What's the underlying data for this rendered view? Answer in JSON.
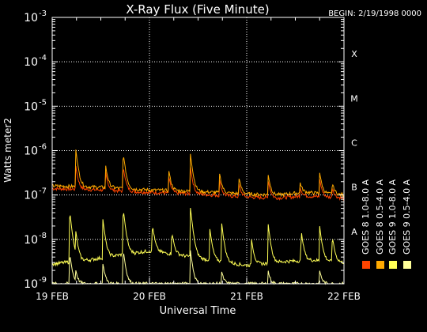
{
  "chart_data": {
    "type": "line",
    "title": "X-Ray Flux (Five Minute)",
    "begin": "BEGIN: 2/19/1998 0000",
    "ylabel": "Watts meter2",
    "xlabel": "Universal Time",
    "x_ticks": [
      "19 FEB",
      "20 FEB",
      "21 FEB",
      "22 FEB"
    ],
    "x_range_days": [
      0,
      3
    ],
    "y_log": true,
    "y_ticks": [
      {
        "base": "10",
        "exp": "-3",
        "value": 0.001
      },
      {
        "base": "10",
        "exp": "-4",
        "value": 0.0001
      },
      {
        "base": "10",
        "exp": "-5",
        "value": 1e-05
      },
      {
        "base": "10",
        "exp": "-6",
        "value": 1e-06
      },
      {
        "base": "10",
        "exp": "-7",
        "value": 1e-07
      },
      {
        "base": "10",
        "exp": "-8",
        "value": 1e-08
      },
      {
        "base": "10",
        "exp": "-9",
        "value": 1e-09
      }
    ],
    "ylim": [
      1e-09,
      0.001
    ],
    "flare_classes": [
      {
        "label": "X",
        "value": 0.0001
      },
      {
        "label": "M",
        "value": 1e-05
      },
      {
        "label": "C",
        "value": 1e-06
      },
      {
        "label": "B",
        "value": 1e-07
      },
      {
        "label": "A",
        "value": 1e-08
      }
    ],
    "grid": true,
    "legend": [
      {
        "label": "GOES 8 1.0-8.0 A",
        "color": "#ff4400"
      },
      {
        "label": "GOES 8 0.5-4.0 A",
        "color": "#ffaa00"
      },
      {
        "label": "GOES 9 1.0-8.0 A",
        "color": "#ffff55"
      },
      {
        "label": "GOES 9 0.5-4.0 A",
        "color": "#ffff99"
      }
    ],
    "series": [
      {
        "name": "GOES 8 1.0-8.0 A",
        "color": "#ff4400",
        "base": [
          [
            0,
            1.4e-07
          ],
          [
            0.5,
            1.3e-07
          ],
          [
            1.0,
            1.15e-07
          ],
          [
            1.5,
            1.05e-07
          ],
          [
            2.0,
            9e-08
          ],
          [
            2.3,
            8.5e-08
          ],
          [
            2.6,
            9.5e-08
          ],
          [
            3.0,
            8.5e-08
          ]
        ],
        "peaks": [
          [
            0.24,
            5e-07
          ],
          [
            0.55,
            3.2e-07
          ],
          [
            0.73,
            4.5e-07
          ],
          [
            1.2,
            2.5e-07
          ],
          [
            1.42,
            4.5e-07
          ],
          [
            1.72,
            2.2e-07
          ],
          [
            1.92,
            1.8e-07
          ],
          [
            2.22,
            2.2e-07
          ],
          [
            2.55,
            1.5e-07
          ],
          [
            2.75,
            2.3e-07
          ],
          [
            2.88,
            1.5e-07
          ]
        ]
      },
      {
        "name": "GOES 8 0.5-4.0 A",
        "color": "#ffaa00",
        "base": [
          [
            0,
            1.6e-07
          ],
          [
            0.5,
            1.5e-07
          ],
          [
            1.0,
            1.3e-07
          ],
          [
            1.5,
            1.2e-07
          ],
          [
            2.0,
            1.05e-07
          ],
          [
            2.3,
            1e-07
          ],
          [
            2.6,
            1.15e-07
          ],
          [
            3.0,
            1e-07
          ]
        ],
        "peaks": [
          [
            0.24,
            1.2e-06
          ],
          [
            0.55,
            4.5e-07
          ],
          [
            0.73,
            9e-07
          ],
          [
            1.2,
            3.5e-07
          ],
          [
            1.42,
            9e-07
          ],
          [
            1.72,
            3.2e-07
          ],
          [
            1.92,
            2.5e-07
          ],
          [
            2.22,
            3e-07
          ],
          [
            2.55,
            1.9e-07
          ],
          [
            2.75,
            3.2e-07
          ],
          [
            2.88,
            1.9e-07
          ]
        ]
      },
      {
        "name": "GOES 9 1.0-8.0 A",
        "color": "#ffff55",
        "base": [
          [
            0,
            2.8e-09
          ],
          [
            0.4,
            3.5e-09
          ],
          [
            0.7,
            4.5e-09
          ],
          [
            1.0,
            5.5e-09
          ],
          [
            1.3,
            4.5e-09
          ],
          [
            1.6,
            3.5e-09
          ],
          [
            2.0,
            2.6e-09
          ],
          [
            2.4,
            3.2e-09
          ],
          [
            2.7,
            3.4e-09
          ],
          [
            3.0,
            3e-09
          ]
        ],
        "peaks": [
          [
            0.18,
            4.5e-08
          ],
          [
            0.24,
            1.5e-08
          ],
          [
            0.52,
            3e-08
          ],
          [
            0.73,
            5e-08
          ],
          [
            1.03,
            2.2e-08
          ],
          [
            1.23,
            1.5e-08
          ],
          [
            1.42,
            5.5e-08
          ],
          [
            1.62,
            1.8e-08
          ],
          [
            1.74,
            2.6e-08
          ],
          [
            2.05,
            1e-08
          ],
          [
            2.22,
            2.3e-08
          ],
          [
            2.56,
            1.6e-08
          ],
          [
            2.75,
            2e-08
          ],
          [
            2.88,
            1.2e-08
          ]
        ]
      },
      {
        "name": "GOES 9 0.5-4.0 A",
        "color": "#ffff99",
        "base": [
          [
            0,
            1e-09
          ],
          [
            3.0,
            1e-09
          ]
        ],
        "peaks": [
          [
            0.18,
            5e-09
          ],
          [
            0.24,
            2e-09
          ],
          [
            0.52,
            3e-09
          ],
          [
            0.73,
            6e-09
          ],
          [
            1.42,
            6e-09
          ],
          [
            1.74,
            2e-09
          ],
          [
            2.22,
            2e-09
          ],
          [
            2.75,
            2e-09
          ]
        ]
      }
    ]
  }
}
